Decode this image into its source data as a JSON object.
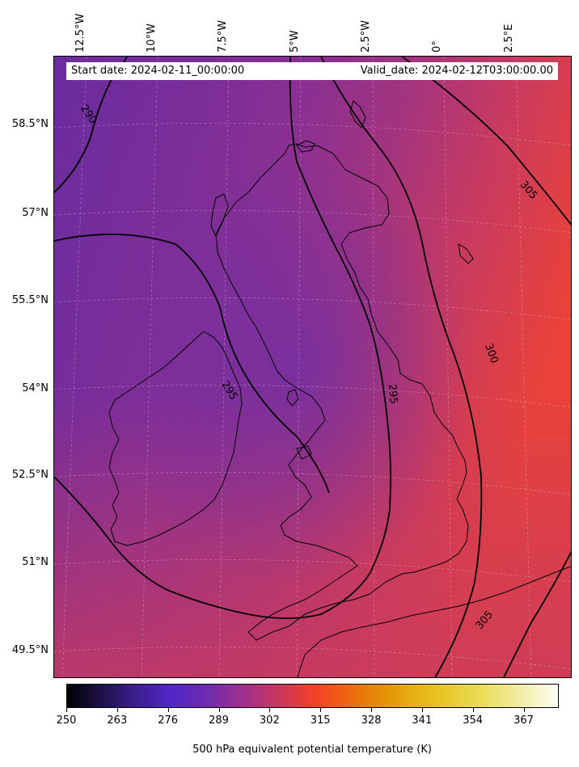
{
  "header": {
    "start_date": "Start date: 2024-02-11_00:00:00",
    "valid_date": "Valid_date: 2024-02-12T03:00:00.00"
  },
  "lon_labels": [
    "12.5°W",
    "10°W",
    "7.5°W",
    "5°W",
    "2.5°W",
    "0°",
    "2.5°E"
  ],
  "lat_labels": [
    "58.5°N",
    "57°N",
    "55.5°N",
    "54°N",
    "52.5°N",
    "51°N",
    "49.5°N"
  ],
  "contour_labels": [
    {
      "text": "290"
    },
    {
      "text": "305"
    },
    {
      "text": "300"
    },
    {
      "text": "295"
    },
    {
      "text": "295"
    },
    {
      "text": "305"
    }
  ],
  "colorbar": {
    "title": "500 hPa equivalent potential temperature (K)",
    "min": 250,
    "max": 376,
    "ticks": [
      "250",
      "263",
      "276",
      "289",
      "302",
      "315",
      "328",
      "341",
      "354",
      "367"
    ]
  },
  "colors": {
    "field_cool": "#6b2fa3",
    "field_mid": "#a8347d",
    "field_warm": "#e4423d"
  }
}
